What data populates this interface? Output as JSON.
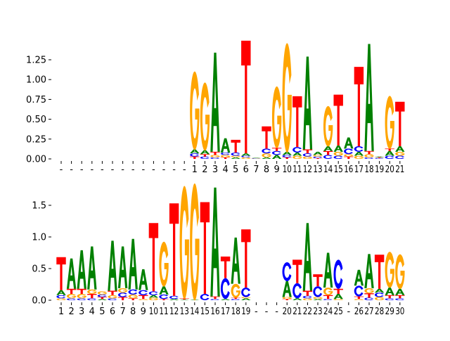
{
  "colors": {
    "A": "#008000",
    "C": "#0000ff",
    "G": "#ffa500",
    "T": "#ff0000"
  },
  "chart_data": [
    {
      "type": "sequence-logo",
      "yticks": [
        "0.00",
        "0.25",
        "0.50",
        "0.75",
        "1.00",
        "1.25"
      ],
      "ytick_values": [
        0,
        0.25,
        0.5,
        0.75,
        1.0,
        1.25
      ],
      "ylim": [
        0,
        1.5
      ],
      "xtick_labels": [
        "-",
        "-",
        "-",
        "-",
        "-",
        "-",
        "-",
        "-",
        "-",
        "-",
        "-",
        "-",
        "-",
        "1",
        "2",
        "3",
        "4",
        "5",
        "6",
        "7",
        "8",
        "9",
        "10",
        "11",
        "12",
        "13",
        "14",
        "15",
        "16",
        "17",
        "18",
        "19",
        "20",
        "21"
      ],
      "stacks": [
        [],
        [],
        [],
        [],
        [],
        [],
        [],
        [],
        [],
        [],
        [],
        [],
        [],
        [
          [
            "T",
            0.03
          ],
          [
            "C",
            0.04
          ],
          [
            "A",
            0.05
          ],
          [
            "G",
            0.99
          ]
        ],
        [
          [
            "C",
            0.03
          ],
          [
            "T",
            0.03
          ],
          [
            "A",
            0.05
          ],
          [
            "G",
            0.86
          ]
        ],
        [
          [
            "C",
            0.02
          ],
          [
            "G",
            0.03
          ],
          [
            "T",
            0.04
          ],
          [
            "A",
            1.25
          ]
        ],
        [
          [
            "T",
            0.02
          ],
          [
            "G",
            0.03
          ],
          [
            "C",
            0.03
          ],
          [
            "A",
            0.18
          ]
        ],
        [
          [
            "A",
            0.02
          ],
          [
            "G",
            0.02
          ],
          [
            "C",
            0.04
          ],
          [
            "T",
            0.16
          ]
        ],
        [
          [
            "G",
            0.02
          ],
          [
            "C",
            0.02
          ],
          [
            "A",
            0.03
          ],
          [
            "T",
            1.42
          ]
        ],
        [
          [
            "C",
            0.005
          ],
          [
            "G",
            0.005
          ],
          [
            "A",
            0.005
          ]
        ],
        [
          [
            "A",
            0.02
          ],
          [
            "G",
            0.05
          ],
          [
            "C",
            0.06
          ],
          [
            "T",
            0.28
          ]
        ],
        [
          [
            "A",
            0.05
          ],
          [
            "C",
            0.05
          ],
          [
            "T",
            0.04
          ],
          [
            "G",
            0.78
          ]
        ],
        [
          [
            "T",
            0.02
          ],
          [
            "C",
            0.03
          ],
          [
            "A",
            0.04
          ],
          [
            "G",
            1.38
          ]
        ],
        [
          [
            "G",
            0.04
          ],
          [
            "A",
            0.04
          ],
          [
            "C",
            0.07
          ],
          [
            "T",
            0.64
          ]
        ],
        [
          [
            "G",
            0.03
          ],
          [
            "C",
            0.04
          ],
          [
            "T",
            0.05
          ],
          [
            "A",
            1.17
          ]
        ],
        [
          [
            "T",
            0.01
          ],
          [
            "C",
            0.02
          ],
          [
            "G",
            0.02
          ],
          [
            "A",
            0.04
          ]
        ],
        [
          [
            "C",
            0.05
          ],
          [
            "T",
            0.05
          ],
          [
            "A",
            0.06
          ],
          [
            "G",
            0.51
          ]
        ],
        [
          [
            "C",
            0.04
          ],
          [
            "G",
            0.05
          ],
          [
            "A",
            0.08
          ],
          [
            "T",
            0.64
          ]
        ],
        [
          [
            "T",
            0.03
          ],
          [
            "G",
            0.03
          ],
          [
            "C",
            0.07
          ],
          [
            "A",
            0.14
          ]
        ],
        [
          [
            "G",
            0.04
          ],
          [
            "A",
            0.05
          ],
          [
            "C",
            0.07
          ],
          [
            "T",
            1.0
          ]
        ],
        [
          [
            "C",
            0.02
          ],
          [
            "G",
            0.04
          ],
          [
            "T",
            0.04
          ],
          [
            "A",
            1.35
          ]
        ],
        [
          [
            "C",
            0.01
          ],
          [
            "T",
            0.01
          ],
          [
            "A",
            0.01
          ]
        ],
        [
          [
            "C",
            0.04
          ],
          [
            "A",
            0.06
          ],
          [
            "T",
            0.03
          ],
          [
            "G",
            0.67
          ]
        ],
        [
          [
            "C",
            0.04
          ],
          [
            "G",
            0.05
          ],
          [
            "A",
            0.07
          ],
          [
            "T",
            0.56
          ]
        ]
      ]
    },
    {
      "type": "sequence-logo",
      "yticks": [
        "0.0",
        "0.5",
        "1.0",
        "1.5"
      ],
      "ytick_values": [
        0,
        0.5,
        1.0,
        1.5
      ],
      "ylim": [
        0,
        1.9
      ],
      "xtick_labels": [
        "1",
        "2",
        "3",
        "4",
        "5",
        "6",
        "7",
        "8",
        "9",
        "10",
        "11",
        "12",
        "13",
        "14",
        "15",
        "16",
        "17",
        "18",
        "19",
        "-",
        "-",
        "-",
        "20",
        "21",
        "22",
        "23",
        "24",
        "25",
        "-",
        "26",
        "27",
        "28",
        "29",
        "30"
      ],
      "stacks": [
        [
          [
            "G",
            0.03
          ],
          [
            "C",
            0.05
          ],
          [
            "A",
            0.08
          ],
          [
            "T",
            0.52
          ]
        ],
        [
          [
            "C",
            0.03
          ],
          [
            "G",
            0.07
          ],
          [
            "T",
            0.08
          ],
          [
            "A",
            0.48
          ]
        ],
        [
          [
            "C",
            0.03
          ],
          [
            "G",
            0.07
          ],
          [
            "T",
            0.08
          ],
          [
            "A",
            0.61
          ]
        ],
        [
          [
            "C",
            0.03
          ],
          [
            "T",
            0.07
          ],
          [
            "G",
            0.07
          ],
          [
            "A",
            0.68
          ]
        ],
        [
          [
            "A",
            0.02
          ],
          [
            "T",
            0.03
          ],
          [
            "C",
            0.04
          ],
          [
            "G",
            0.05
          ]
        ],
        [
          [
            "C",
            0.03
          ],
          [
            "G",
            0.05
          ],
          [
            "T",
            0.07
          ],
          [
            "A",
            0.79
          ]
        ],
        [
          [
            "T",
            0.05
          ],
          [
            "C",
            0.07
          ],
          [
            "G",
            0.07
          ],
          [
            "A",
            0.66
          ]
        ],
        [
          [
            "T",
            0.03
          ],
          [
            "G",
            0.06
          ],
          [
            "C",
            0.08
          ],
          [
            "A",
            0.8
          ]
        ],
        [
          [
            "G",
            0.02
          ],
          [
            "T",
            0.06
          ],
          [
            "C",
            0.08
          ],
          [
            "A",
            0.33
          ]
        ],
        [
          [
            "G",
            0.04
          ],
          [
            "A",
            0.04
          ],
          [
            "C",
            0.06
          ],
          [
            "T",
            1.08
          ]
        ],
        [
          [
            "T",
            0.02
          ],
          [
            "C",
            0.07
          ],
          [
            "A",
            0.13
          ],
          [
            "G",
            0.71
          ]
        ],
        [
          [
            "A",
            0.02
          ],
          [
            "C",
            0.05
          ],
          [
            "T",
            1.46
          ]
        ],
        [
          [
            "A",
            0.01
          ],
          [
            "T",
            0.02
          ],
          [
            "G",
            1.79
          ]
        ],
        [
          [
            "A",
            0.01
          ],
          [
            "G",
            1.85
          ]
        ],
        [
          [
            "C",
            0.1
          ],
          [
            "T",
            1.45
          ]
        ],
        [
          [
            "C",
            0.02
          ],
          [
            "T",
            0.04
          ],
          [
            "A",
            1.72
          ]
        ],
        [
          [
            "A",
            0.02
          ],
          [
            "C",
            0.33
          ],
          [
            "T",
            0.34
          ]
        ],
        [
          [
            "C",
            0.02
          ],
          [
            "T",
            0.02
          ],
          [
            "G",
            0.22
          ],
          [
            "A",
            0.73
          ]
        ],
        [
          [
            "A",
            0.03
          ],
          [
            "G",
            0.02
          ],
          [
            "C",
            0.15
          ],
          [
            "T",
            0.92
          ]
        ],
        [],
        [],
        [],
        [
          [
            "T",
            0.02
          ],
          [
            "G",
            0.03
          ],
          [
            "A",
            0.25
          ],
          [
            "C",
            0.3
          ]
        ],
        [
          [
            "A",
            0.03
          ],
          [
            "C",
            0.24
          ],
          [
            "T",
            0.37
          ]
        ],
        [
          [
            "G",
            0.03
          ],
          [
            "C",
            0.04
          ],
          [
            "T",
            0.08
          ],
          [
            "A",
            1.07
          ]
        ],
        [
          [
            "A",
            0.02
          ],
          [
            "G",
            0.03
          ],
          [
            "C",
            0.17
          ],
          [
            "T",
            0.19
          ]
        ],
        [
          [
            "C",
            0.02
          ],
          [
            "T",
            0.06
          ],
          [
            "G",
            0.12
          ],
          [
            "A",
            0.55
          ]
        ],
        [
          [
            "G",
            0.02
          ],
          [
            "A",
            0.08
          ],
          [
            "T",
            0.08
          ],
          [
            "C",
            0.46
          ]
        ],
        [],
        [
          [
            "G",
            0.02
          ],
          [
            "T",
            0.04
          ],
          [
            "C",
            0.17
          ],
          [
            "A",
            0.25
          ]
        ],
        [
          [
            "C",
            0.04
          ],
          [
            "T",
            0.07
          ],
          [
            "G",
            0.08
          ],
          [
            "A",
            0.54
          ]
        ],
        [
          [
            "G",
            0.05
          ],
          [
            "C",
            0.07
          ],
          [
            "A",
            0.06
          ],
          [
            "T",
            0.54
          ]
        ],
        [
          [
            "C",
            0.03
          ],
          [
            "T",
            0.05
          ],
          [
            "A",
            0.12
          ],
          [
            "G",
            0.57
          ]
        ],
        [
          [
            "C",
            0.03
          ],
          [
            "T",
            0.05
          ],
          [
            "A",
            0.1
          ],
          [
            "G",
            0.55
          ]
        ]
      ]
    }
  ]
}
